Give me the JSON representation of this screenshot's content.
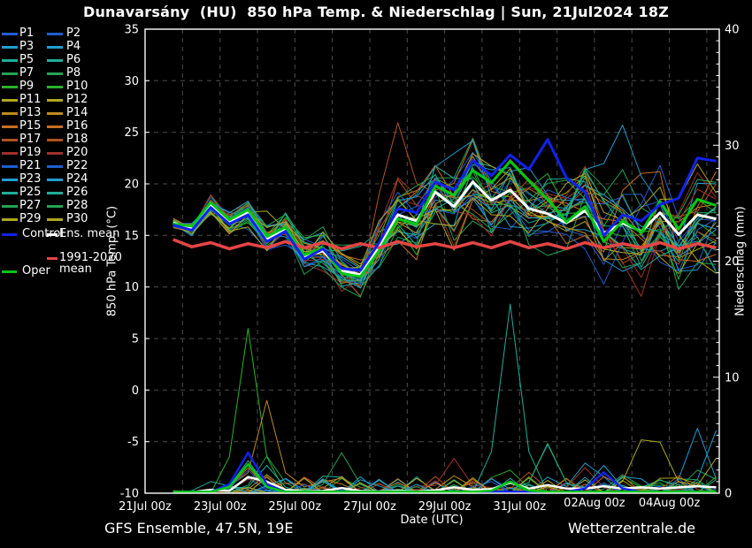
{
  "title": "Dunavarsány  (HU)  850 hPa Temp. & Niederschlag | Sun, 21Jul2024 18Z",
  "footer": {
    "left": "GFS Ensemble, 47.5N, 19E",
    "right": "Wetterzentrale.de"
  },
  "legend": {
    "members": [
      {
        "name": "P1",
        "color": "#1f5fd0"
      },
      {
        "name": "P2",
        "color": "#1f5fd0"
      },
      {
        "name": "P3",
        "color": "#1f9fd0"
      },
      {
        "name": "P4",
        "color": "#1f9fd0"
      },
      {
        "name": "P5",
        "color": "#1fae9a"
      },
      {
        "name": "P6",
        "color": "#1fae9a"
      },
      {
        "name": "P7",
        "color": "#22a455"
      },
      {
        "name": "P8",
        "color": "#22a455"
      },
      {
        "name": "P9",
        "color": "#28b428"
      },
      {
        "name": "P10",
        "color": "#28b428"
      },
      {
        "name": "P11",
        "color": "#b0a81f"
      },
      {
        "name": "P12",
        "color": "#b0a81f"
      },
      {
        "name": "P13",
        "color": "#c08a1f"
      },
      {
        "name": "P14",
        "color": "#c08a1f"
      },
      {
        "name": "P15",
        "color": "#c86f1f"
      },
      {
        "name": "P16",
        "color": "#c86f1f"
      },
      {
        "name": "P17",
        "color": "#b0521f"
      },
      {
        "name": "P18",
        "color": "#b0521f"
      },
      {
        "name": "P19",
        "color": "#a03028"
      },
      {
        "name": "P20",
        "color": "#a03028"
      },
      {
        "name": "P21",
        "color": "#1f5fd0"
      },
      {
        "name": "P22",
        "color": "#1f5fd0"
      },
      {
        "name": "P23",
        "color": "#1f9fd0"
      },
      {
        "name": "P24",
        "color": "#1f9fd0"
      },
      {
        "name": "P25",
        "color": "#1fae9a"
      },
      {
        "name": "P26",
        "color": "#1fae9a"
      },
      {
        "name": "P27",
        "color": "#22a455"
      },
      {
        "name": "P28",
        "color": "#22a455"
      },
      {
        "name": "P29",
        "color": "#b0a81f"
      },
      {
        "name": "P30",
        "color": "#b0a81f"
      }
    ],
    "specials": {
      "control": {
        "label": "Control",
        "color": "#1122ee"
      },
      "ens_mean": {
        "label": "Ens. mean",
        "color": "#ffffff"
      },
      "climate": {
        "label_lines": [
          "1991-2020",
          "mean"
        ],
        "color": "#e64545"
      },
      "oper": {
        "label": "Oper",
        "color": "#00c814"
      }
    }
  },
  "chart_data": {
    "type": "line",
    "title": "Dunavarsány (HU) 850 hPa Temp. & Niederschlag | Sun, 21Jul2024 18Z",
    "x_axis": {
      "label": "Date (UTC)",
      "tick_labels": [
        "21Jul 00z",
        "23Jul 00z",
        "25Jul 00z",
        "27Jul 00z",
        "29Jul 00z",
        "31Jul 00z",
        "02Aug 00z",
        "04Aug 00z"
      ],
      "tick_days": [
        0,
        2,
        4,
        6,
        8,
        10,
        12,
        14
      ],
      "range_days": [
        0,
        15.33
      ],
      "grid": true
    },
    "y_left": {
      "label": "850 hPa Temp. (°C)",
      "ticks": [
        35,
        30,
        25,
        20,
        15,
        10,
        5,
        0,
        -5,
        -10
      ],
      "range": [
        -10,
        35
      ],
      "grid": true
    },
    "y_right": {
      "label": "Niederschlag (mm)",
      "ticks": [
        0,
        10,
        20,
        30,
        40
      ],
      "range": [
        0,
        40
      ]
    },
    "time_days": [
      0.75,
      1.25,
      1.75,
      2.25,
      2.75,
      3.25,
      3.75,
      4.25,
      4.75,
      5.25,
      5.75,
      6.25,
      6.75,
      7.25,
      7.75,
      8.25,
      8.75,
      9.25,
      9.75,
      10.25,
      10.75,
      11.25,
      11.75,
      12.25,
      12.75,
      13.25,
      13.75,
      14.25,
      14.75,
      15.25
    ],
    "series": {
      "ens_mean": {
        "label": "Ens. mean",
        "color": "#ffffff",
        "width": 3,
        "values": [
          16.2,
          15.7,
          17.9,
          16.3,
          17.2,
          14.6,
          15.6,
          12.9,
          13.5,
          11.6,
          11.2,
          13.9,
          17.0,
          16.4,
          19.2,
          17.8,
          20.2,
          18.4,
          19.4,
          17.6,
          17.1,
          16.2,
          17.4,
          15.2,
          16.2,
          15.4,
          17.2,
          15.1,
          17.0,
          16.6
        ]
      },
      "control": {
        "label": "Control",
        "color": "#1122ee",
        "width": 3,
        "values": [
          16.0,
          15.5,
          17.7,
          16.1,
          17.0,
          14.4,
          15.4,
          12.7,
          13.7,
          11.8,
          11.6,
          14.3,
          17.6,
          17.2,
          20.2,
          19.4,
          22.3,
          20.8,
          22.8,
          21.4,
          24.3,
          20.6,
          19.2,
          15.0,
          17.0,
          16.4,
          18.0,
          18.6,
          22.5,
          22.2
        ]
      },
      "oper": {
        "label": "Oper",
        "color": "#00c814",
        "width": 3,
        "values": [
          16.1,
          15.9,
          18.2,
          16.5,
          17.5,
          14.9,
          15.8,
          13.1,
          13.8,
          11.3,
          11.0,
          13.5,
          16.6,
          16.1,
          19.8,
          18.9,
          21.3,
          20.1,
          22.2,
          20.3,
          18.5,
          16.3,
          17.8,
          14.4,
          16.4,
          15.3,
          18.3,
          15.6,
          18.5,
          17.9
        ]
      },
      "climate_mean": {
        "label": "1991-2020 mean",
        "color": "#e64545",
        "width": 3.5,
        "values": [
          14.6,
          13.9,
          14.3,
          13.7,
          14.2,
          13.8,
          14.4,
          13.8,
          14.3,
          13.7,
          14.2,
          13.8,
          14.4,
          13.9,
          14.2,
          13.8,
          14.3,
          13.8,
          14.4,
          13.8,
          14.2,
          13.7,
          14.3,
          13.8,
          14.2,
          13.8,
          14.3,
          13.7,
          14.2,
          13.8
        ]
      }
    },
    "ensemble": {
      "spread": [
        0.3,
        0.5,
        0.7,
        0.9,
        1.1,
        1.3,
        1.5,
        1.7,
        1.8,
        1.9,
        2.0,
        2.2,
        2.5,
        2.8,
        3.0,
        3.2,
        3.3,
        3.3,
        3.4,
        3.4,
        3.5,
        3.6,
        3.8,
        4.0,
        4.1,
        4.2,
        4.3,
        4.3,
        4.4,
        4.4
      ],
      "members": [
        {
          "name": "P1",
          "color": "#1f5fd0",
          "seed": 331
        },
        {
          "name": "P2",
          "color": "#1f5fd0",
          "seed": 662
        },
        {
          "name": "P3",
          "color": "#1f9fd0",
          "seed": 993
        },
        {
          "name": "P4",
          "color": "#1f9fd0",
          "seed": 1324
        },
        {
          "name": "P5",
          "color": "#1fae9a",
          "seed": 1655
        },
        {
          "name": "P6",
          "color": "#1fae9a",
          "seed": 1986
        },
        {
          "name": "P7",
          "color": "#22a455",
          "seed": 2317
        },
        {
          "name": "P8",
          "color": "#22a455",
          "seed": 2648
        },
        {
          "name": "P9",
          "color": "#28b428",
          "seed": 2979
        },
        {
          "name": "P10",
          "color": "#28b428",
          "seed": 3310
        },
        {
          "name": "P11",
          "color": "#b0a81f",
          "seed": 3641
        },
        {
          "name": "P12",
          "color": "#b0a81f",
          "seed": 3972
        },
        {
          "name": "P13",
          "color": "#c08a1f",
          "seed": 4303
        },
        {
          "name": "P14",
          "color": "#c08a1f",
          "seed": 4634
        },
        {
          "name": "P15",
          "color": "#c86f1f",
          "seed": 4965
        },
        {
          "name": "P16",
          "color": "#c86f1f",
          "seed": 5296
        },
        {
          "name": "P17",
          "color": "#b0521f",
          "seed": 5627
        },
        {
          "name": "P18",
          "color": "#b0521f",
          "seed": 5958
        },
        {
          "name": "P19",
          "color": "#a03028",
          "seed": 6289
        },
        {
          "name": "P20",
          "color": "#a03028",
          "seed": 6620
        },
        {
          "name": "P21",
          "color": "#1f5fd0",
          "seed": 6951
        },
        {
          "name": "P22",
          "color": "#1f5fd0",
          "seed": 7282
        },
        {
          "name": "P23",
          "color": "#1f9fd0",
          "seed": 7613
        },
        {
          "name": "P24",
          "color": "#1f9fd0",
          "seed": 7944
        },
        {
          "name": "P25",
          "color": "#1fae9a",
          "seed": 8275
        },
        {
          "name": "P26",
          "color": "#1fae9a",
          "seed": 8606
        },
        {
          "name": "P27",
          "color": "#22a455",
          "seed": 8937
        },
        {
          "name": "P28",
          "color": "#22a455",
          "seed": 9268
        },
        {
          "name": "P29",
          "color": "#b0a81f",
          "seed": 9599
        },
        {
          "name": "P30",
          "color": "#b0a81f",
          "seed": 9930
        }
      ],
      "outliers": [
        [
          "P17",
          6.75,
          7.6,
          0.55
        ],
        [
          "P18",
          6.75,
          4.5,
          0.6
        ],
        [
          "P23",
          13.0,
          8.0,
          0.8
        ],
        [
          "P24",
          8.75,
          4.5,
          0.7
        ],
        [
          "P3",
          14.6,
          -4.5,
          0.7
        ],
        [
          "P21",
          12.4,
          -4.5,
          0.8
        ],
        [
          "P11",
          3.25,
          3.5,
          0.5
        ]
      ]
    },
    "precipitation": {
      "unit": "mm",
      "mean": [
        0.05,
        0.1,
        0.3,
        0.2,
        1.4,
        1.0,
        0.3,
        0.15,
        0.2,
        0.45,
        0.2,
        0.15,
        0.2,
        0.15,
        0.25,
        0.5,
        0.3,
        0.35,
        0.9,
        0.4,
        0.7,
        0.4,
        0.4,
        0.6,
        0.4,
        0.5,
        0.4,
        0.5,
        0.6,
        0.5
      ],
      "spikes": [
        [
          1.9,
          1.0,
          "P5"
        ],
        [
          2.6,
          1.2,
          "P19"
        ],
        [
          2.75,
          1.3,
          "P1"
        ],
        [
          2.9,
          14.2,
          "P9"
        ],
        [
          2.9,
          2.8,
          "P5"
        ],
        [
          3.0,
          3.2,
          "P7"
        ],
        [
          3.2,
          8.0,
          "P13"
        ],
        [
          3.1,
          1.6,
          "P11"
        ],
        [
          2.8,
          2.2,
          "P15"
        ],
        [
          2.9,
          2.0,
          "P21"
        ],
        [
          3.4,
          2.4,
          "P25"
        ],
        [
          4.5,
          1.1,
          "P3"
        ],
        [
          5.0,
          3.5,
          "P27"
        ],
        [
          6.9,
          0.9,
          "P15"
        ],
        [
          8.0,
          3.0,
          "P19"
        ],
        [
          8.3,
          1.5,
          "P13"
        ],
        [
          9.5,
          2.0,
          "P9"
        ],
        [
          9.75,
          16.3,
          "P25"
        ],
        [
          10.3,
          1.8,
          "P17"
        ],
        [
          10.7,
          4.3,
          "P27"
        ],
        [
          10.75,
          4.2,
          "P23"
        ],
        [
          11.8,
          2.2,
          "P19"
        ],
        [
          11.9,
          2.6,
          "P3"
        ],
        [
          12.0,
          2.4,
          "P24"
        ],
        [
          12.9,
          1.6,
          "P7"
        ],
        [
          13.3,
          4.6,
          "P29"
        ],
        [
          13.55,
          4.4,
          "P29"
        ],
        [
          14.0,
          1.5,
          "P17"
        ],
        [
          14.5,
          5.6,
          "P3"
        ],
        [
          14.8,
          2.0,
          "P27"
        ],
        [
          15.05,
          5.4,
          "P4"
        ],
        [
          15.1,
          3.0,
          "P29"
        ]
      ],
      "control_spikes": [
        [
          2.9,
          3.5
        ],
        [
          12.0,
          1.8
        ]
      ],
      "oper_spikes": [
        [
          2.9,
          2.5
        ],
        [
          9.75,
          1.0
        ]
      ]
    }
  }
}
